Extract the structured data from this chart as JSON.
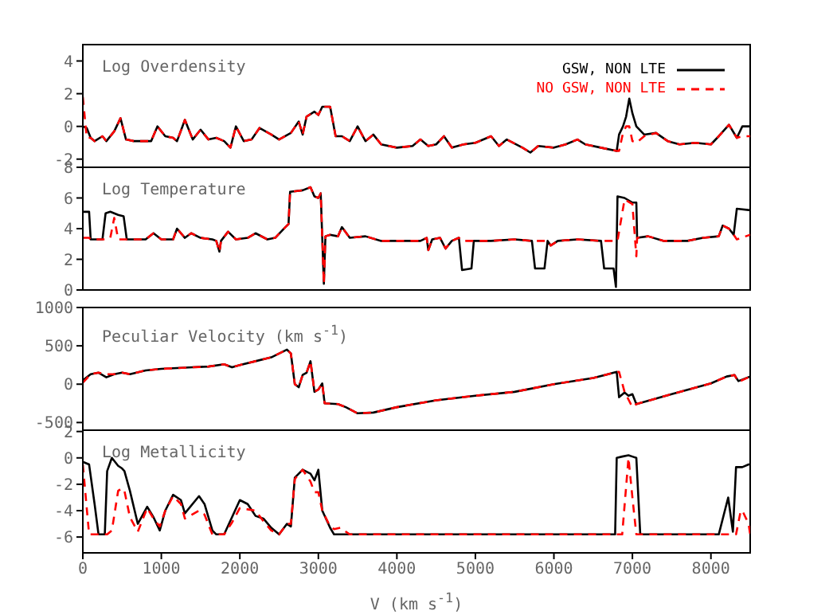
{
  "chart_data": [
    {
      "type": "line",
      "title": "Log Overdensity",
      "legend": "top right",
      "tick_labels": "y",
      "xlim": [
        0,
        8500
      ],
      "xticks": [
        0,
        1000,
        2000,
        3000,
        4000,
        5000,
        6000,
        7000,
        8000
      ],
      "ylim": [
        -2.5,
        5
      ],
      "yticks": [
        -2,
        0,
        2,
        4
      ],
      "x": [
        0,
        50,
        100,
        150,
        250,
        300,
        400,
        480,
        550,
        650,
        800,
        870,
        950,
        1050,
        1150,
        1200,
        1300,
        1400,
        1500,
        1600,
        1700,
        1800,
        1880,
        1950,
        2050,
        2150,
        2250,
        2400,
        2500,
        2650,
        2750,
        2800,
        2850,
        2950,
        3000,
        3050,
        3150,
        3220,
        3300,
        3400,
        3500,
        3600,
        3700,
        3800,
        4000,
        4200,
        4300,
        4400,
        4500,
        4600,
        4700,
        4850,
        5000,
        5200,
        5300,
        5400,
        5600,
        5700,
        5800,
        6000,
        6150,
        6300,
        6400,
        6600,
        6800,
        6830,
        6880,
        6920,
        6960,
        7000,
        7050,
        7150,
        7300,
        7450,
        7600,
        7800,
        8000,
        8100,
        8230,
        8330,
        8400,
        8500
      ],
      "series": [
        {
          "name": "GSW, NON LTE",
          "color": "#000000",
          "line_style": "solid",
          "values": [
            0,
            -0.1,
            -0.7,
            -0.9,
            -0.6,
            -0.9,
            -0.3,
            0.5,
            -0.8,
            -0.9,
            -0.9,
            -0.9,
            0.0,
            -0.6,
            -0.7,
            -0.9,
            0.4,
            -0.8,
            -0.2,
            -0.8,
            -0.7,
            -0.9,
            -1.3,
            0.0,
            -0.9,
            -0.8,
            -0.1,
            -0.5,
            -0.8,
            -0.4,
            0.3,
            -0.5,
            0.6,
            0.9,
            0.7,
            1.2,
            1.2,
            -0.6,
            -0.6,
            -0.9,
            0.0,
            -0.9,
            -0.5,
            -1.1,
            -1.3,
            -1.2,
            -0.8,
            -1.2,
            -1.1,
            -0.6,
            -1.3,
            -1.1,
            -1.0,
            -0.6,
            -1.2,
            -0.8,
            -1.3,
            -1.6,
            -1.2,
            -1.3,
            -1.1,
            -0.8,
            -1.1,
            -1.3,
            -1.5,
            -0.5,
            0.0,
            0.6,
            1.7,
            0.8,
            0.0,
            -0.5,
            -0.4,
            -0.9,
            -1.1,
            -1.0,
            -1.1,
            -0.6,
            0.1,
            -0.7,
            0.0,
            0.0
          ]
        },
        {
          "name": "NO GSW, NON LTE",
          "color": "#ff0000",
          "line_style": "dashed",
          "values": [
            1.8,
            -0.7,
            -0.7,
            -0.9,
            -0.6,
            -0.9,
            -0.3,
            0.5,
            -0.8,
            -0.9,
            -0.9,
            -0.9,
            0.0,
            -0.6,
            -0.7,
            -0.9,
            0.4,
            -0.8,
            -0.2,
            -0.8,
            -0.7,
            -0.9,
            -1.3,
            0.0,
            -0.9,
            -0.8,
            -0.1,
            -0.5,
            -0.8,
            -0.4,
            0.3,
            -0.5,
            0.6,
            0.9,
            0.7,
            1.2,
            1.2,
            -0.6,
            -0.6,
            -0.9,
            0.0,
            -0.9,
            -0.5,
            -1.1,
            -1.3,
            -1.2,
            -0.8,
            -1.2,
            -1.1,
            -0.6,
            -1.3,
            -1.1,
            -1.0,
            -0.6,
            -1.2,
            -0.8,
            -1.3,
            -1.6,
            -1.2,
            -1.3,
            -1.1,
            -0.8,
            -1.1,
            -1.3,
            -1.5,
            -1.5,
            -0.4,
            0.0,
            0.0,
            -0.9,
            -1.0,
            -0.6,
            -0.4,
            -0.9,
            -1.1,
            -1.0,
            -1.1,
            -0.6,
            0.1,
            -0.7,
            -0.6,
            -0.6
          ]
        }
      ]
    },
    {
      "type": "line",
      "title": "Log Temperature",
      "tick_labels": "y",
      "xlim": [
        0,
        8500
      ],
      "xticks": [
        0,
        1000,
        2000,
        3000,
        4000,
        5000,
        6000,
        7000,
        8000
      ],
      "ylim": [
        0,
        8
      ],
      "yticks": [
        0,
        2,
        4,
        6,
        8
      ],
      "x": [
        0,
        80,
        100,
        250,
        290,
        350,
        400,
        450,
        520,
        560,
        700,
        800,
        900,
        1000,
        1150,
        1200,
        1300,
        1380,
        1500,
        1650,
        1700,
        1740,
        1760,
        1850,
        1950,
        2100,
        2200,
        2350,
        2450,
        2580,
        2620,
        2640,
        2800,
        2900,
        2950,
        3000,
        3030,
        3070,
        3090,
        3150,
        3250,
        3300,
        3400,
        3600,
        3800,
        4000,
        4300,
        4380,
        4400,
        4450,
        4550,
        4620,
        4700,
        4790,
        4830,
        4950,
        4980,
        5200,
        5500,
        5720,
        5760,
        5880,
        5920,
        5960,
        6050,
        6300,
        6600,
        6640,
        6760,
        6790,
        6810,
        6900,
        7000,
        7050,
        7060,
        7200,
        7400,
        7700,
        7900,
        8100,
        8150,
        8230,
        8290,
        8330,
        8500
      ],
      "series": [
        {
          "color": "#000000",
          "line_style": "solid",
          "values": [
            5.1,
            5.1,
            3.3,
            3.3,
            5.0,
            5.1,
            5.0,
            4.9,
            4.8,
            3.3,
            3.3,
            3.3,
            3.7,
            3.3,
            3.3,
            4.0,
            3.4,
            3.7,
            3.4,
            3.3,
            3.2,
            2.5,
            3.2,
            3.8,
            3.3,
            3.4,
            3.7,
            3.3,
            3.4,
            4.1,
            4.3,
            6.4,
            6.5,
            6.7,
            6.1,
            6.0,
            6.3,
            0.4,
            3.5,
            3.6,
            3.5,
            4.1,
            3.4,
            3.5,
            3.2,
            3.2,
            3.2,
            3.4,
            2.6,
            3.3,
            3.4,
            2.7,
            3.2,
            3.4,
            1.3,
            1.4,
            3.2,
            3.2,
            3.3,
            3.2,
            1.4,
            1.4,
            3.2,
            2.9,
            3.2,
            3.3,
            3.2,
            1.4,
            1.4,
            0.2,
            6.1,
            6.0,
            5.7,
            5.7,
            3.4,
            3.5,
            3.2,
            3.2,
            3.4,
            3.5,
            4.2,
            4.0,
            3.6,
            5.3,
            5.2
          ]
        },
        {
          "color": "#ff0000",
          "line_style": "dashed",
          "values": [
            3.4,
            3.4,
            3.3,
            3.3,
            3.3,
            3.4,
            4.7,
            3.3,
            3.3,
            3.3,
            3.3,
            3.3,
            3.7,
            3.3,
            3.3,
            4.0,
            3.4,
            3.7,
            3.4,
            3.3,
            3.2,
            2.5,
            3.2,
            3.8,
            3.3,
            3.4,
            3.7,
            3.3,
            3.4,
            4.1,
            4.3,
            6.4,
            6.5,
            6.7,
            6.1,
            6.0,
            6.3,
            0.4,
            3.5,
            3.6,
            3.5,
            4.1,
            3.4,
            3.5,
            3.2,
            3.2,
            3.2,
            3.4,
            2.6,
            3.3,
            3.4,
            2.7,
            3.2,
            3.4,
            3.2,
            3.2,
            3.2,
            3.2,
            3.3,
            3.2,
            3.2,
            3.2,
            3.2,
            2.9,
            3.2,
            3.3,
            3.2,
            3.2,
            3.2,
            3.2,
            3.2,
            5.9,
            5.6,
            2.2,
            3.4,
            3.5,
            3.2,
            3.2,
            3.4,
            3.5,
            4.2,
            4.0,
            3.6,
            3.3,
            3.6
          ]
        }
      ]
    },
    {
      "type": "line",
      "title": "Peculiar Velocity (km s$^{-1}$)",
      "tick_labels": "y",
      "xlim": [
        0,
        8500
      ],
      "xticks": [
        0,
        1000,
        2000,
        3000,
        4000,
        5000,
        6000,
        7000,
        8000
      ],
      "ylim": [
        -600,
        1000
      ],
      "yticks": [
        -500,
        0,
        500,
        1000
      ],
      "x": [
        0,
        100,
        200,
        300,
        400,
        500,
        600,
        800,
        1000,
        1200,
        1400,
        1600,
        1800,
        1900,
        2000,
        2200,
        2400,
        2600,
        2650,
        2700,
        2750,
        2800,
        2850,
        2900,
        2950,
        3000,
        3050,
        3080,
        3250,
        3350,
        3500,
        3700,
        4000,
        4500,
        5000,
        5500,
        6000,
        6500,
        6800,
        6830,
        6900,
        6950,
        7000,
        7050,
        7500,
        8000,
        8200,
        8300,
        8350,
        8500
      ],
      "series": [
        {
          "color": "#000000",
          "line_style": "solid",
          "values": [
            50,
            130,
            150,
            90,
            130,
            150,
            130,
            180,
            200,
            210,
            220,
            230,
            260,
            220,
            250,
            300,
            350,
            450,
            400,
            0,
            -40,
            120,
            150,
            300,
            -100,
            -70,
            10,
            -250,
            -260,
            -300,
            -380,
            -370,
            -300,
            -210,
            -150,
            -100,
            0,
            80,
            160,
            -170,
            -110,
            -150,
            -130,
            -260,
            -130,
            10,
            100,
            120,
            40,
            100
          ]
        },
        {
          "color": "#ff0000",
          "line_style": "dashed",
          "values": [
            20,
            130,
            150,
            130,
            130,
            150,
            130,
            180,
            200,
            210,
            220,
            230,
            260,
            220,
            250,
            300,
            350,
            450,
            400,
            0,
            -40,
            120,
            150,
            300,
            -100,
            -70,
            10,
            -250,
            -260,
            -300,
            -380,
            -370,
            -300,
            -210,
            -150,
            -100,
            0,
            80,
            160,
            160,
            -100,
            -200,
            -300,
            -260,
            -130,
            10,
            100,
            120,
            30,
            100
          ]
        }
      ]
    },
    {
      "type": "line",
      "title": "Log Metallicity",
      "xlabel": "V (km s$^{-1}$)",
      "xlim": [
        0,
        8500
      ],
      "xticks": [
        0,
        1000,
        2000,
        3000,
        4000,
        5000,
        6000,
        7000,
        8000
      ],
      "ylim": [
        -7.2,
        2.1
      ],
      "yticks": [
        -6,
        -4,
        -2,
        0,
        2
      ],
      "x": [
        0,
        80,
        150,
        200,
        280,
        310,
        370,
        450,
        500,
        530,
        600,
        700,
        820,
        900,
        980,
        1050,
        1150,
        1250,
        1300,
        1480,
        1550,
        1650,
        1700,
        1800,
        1900,
        2000,
        2100,
        2200,
        2300,
        2400,
        2500,
        2600,
        2650,
        2700,
        2800,
        2900,
        2950,
        3000,
        3050,
        3150,
        3200,
        3280,
        3400,
        6780,
        6800,
        6870,
        6950,
        7000,
        7050,
        7100,
        8100,
        8220,
        8280,
        8320,
        8380,
        8400,
        8480,
        8500
      ],
      "series": [
        {
          "color": "#000000",
          "line_style": "solid",
          "values": [
            -0.3,
            -0.5,
            -3.5,
            -5.8,
            -5.8,
            -1.0,
            0.0,
            -0.6,
            -0.8,
            -1.0,
            -2.5,
            -5.0,
            -3.7,
            -4.5,
            -5.5,
            -4.0,
            -2.8,
            -3.2,
            -4.2,
            -2.9,
            -3.5,
            -5.5,
            -5.8,
            -5.8,
            -4.5,
            -3.2,
            -3.5,
            -4.4,
            -4.6,
            -5.3,
            -5.8,
            -5.0,
            -5.2,
            -1.5,
            -0.9,
            -1.2,
            -1.7,
            -0.9,
            -4.0,
            -5.3,
            -5.8,
            -5.8,
            -5.8,
            -5.8,
            0.0,
            0.1,
            0.2,
            0.1,
            0.0,
            -5.8,
            -5.8,
            -3.0,
            -5.6,
            -0.7,
            -0.7,
            -0.7,
            -0.5,
            -0.5
          ]
        },
        {
          "color": "#ff0000",
          "line_style": "dashed",
          "values": [
            -0.5,
            -5.8,
            -5.8,
            -5.8,
            -5.8,
            -5.8,
            -5.5,
            -2.5,
            -2.3,
            -2.5,
            -4.5,
            -5.6,
            -3.8,
            -4.6,
            -5.2,
            -4.0,
            -2.9,
            -3.5,
            -4.6,
            -4.0,
            -4.3,
            -5.8,
            -5.8,
            -5.8,
            -4.9,
            -3.8,
            -3.9,
            -4.0,
            -4.8,
            -5.5,
            -5.8,
            -5.0,
            -5.0,
            -1.6,
            -0.9,
            -1.8,
            -2.6,
            -2.6,
            -4.0,
            -5.2,
            -5.4,
            -5.3,
            -5.8,
            -5.8,
            -5.8,
            -5.8,
            0.0,
            -3.0,
            -5.8,
            -5.8,
            -5.8,
            -5.8,
            -5.8,
            -5.8,
            -4.0,
            -4.0,
            -5.0,
            -5.8
          ]
        }
      ]
    }
  ]
}
